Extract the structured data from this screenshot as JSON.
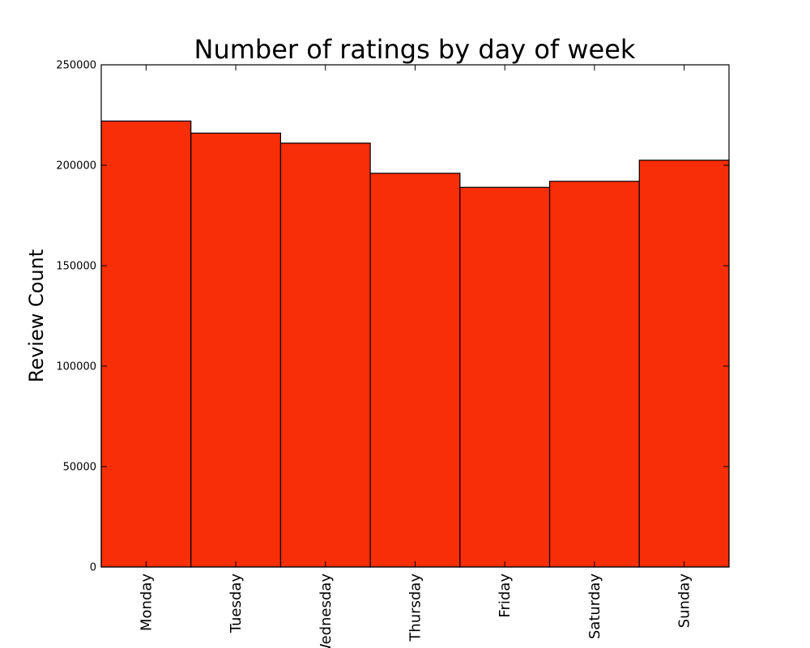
{
  "chart_data": {
    "type": "bar",
    "title": "Number of ratings by day of week",
    "xlabel": "",
    "ylabel": "Review Count",
    "categories": [
      "Monday",
      "Tuesday",
      "Wednesday",
      "Thursday",
      "Friday",
      "Saturday",
      "Sunday"
    ],
    "values": [
      222000,
      216000,
      211000,
      196000,
      189000,
      192000,
      202500
    ],
    "ylim": [
      0,
      250000
    ],
    "yticks": [
      0,
      50000,
      100000,
      150000,
      200000,
      250000
    ],
    "ytick_labels": [
      "0",
      "50000",
      "100000",
      "150000",
      "200000",
      "250000"
    ],
    "bar_color": "#f72e08",
    "edge_color": "#000000",
    "grid": false,
    "legend": "none"
  }
}
